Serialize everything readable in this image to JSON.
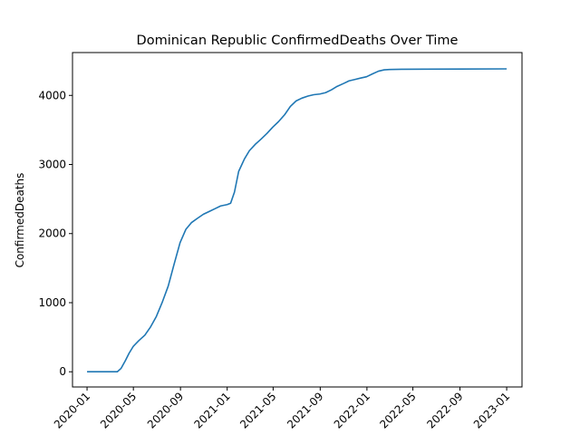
{
  "chart_data": {
    "type": "line",
    "title": "Dominican Republic  ConfirmedDeaths Over Time",
    "xlabel": "",
    "ylabel": "ConfirmedDeaths",
    "x_axis": "date",
    "xlim": [
      "2019-11-24",
      "2023-02-10"
    ],
    "ylim": [
      -220,
      4620
    ],
    "grid": false,
    "legend": "none",
    "line_color": "#1f77b4",
    "x_ticks": [
      "2020-01",
      "2020-05",
      "2020-09",
      "2021-01",
      "2021-05",
      "2021-09",
      "2022-01",
      "2022-05",
      "2022-09",
      "2023-01"
    ],
    "y_ticks": [
      0,
      1000,
      2000,
      3000,
      4000
    ],
    "series": [
      {
        "points": [
          [
            "2020-01-01",
            0
          ],
          [
            "2020-02-15",
            0
          ],
          [
            "2020-03-20",
            0
          ],
          [
            "2020-03-30",
            50
          ],
          [
            "2020-04-10",
            160
          ],
          [
            "2020-04-20",
            270
          ],
          [
            "2020-05-01",
            370
          ],
          [
            "2020-05-15",
            450
          ],
          [
            "2020-05-31",
            530
          ],
          [
            "2020-06-15",
            650
          ],
          [
            "2020-06-30",
            800
          ],
          [
            "2020-07-15",
            1000
          ],
          [
            "2020-07-31",
            1240
          ],
          [
            "2020-08-15",
            1550
          ],
          [
            "2020-08-31",
            1870
          ],
          [
            "2020-09-15",
            2060
          ],
          [
            "2020-09-30",
            2160
          ],
          [
            "2020-10-15",
            2220
          ],
          [
            "2020-10-31",
            2280
          ],
          [
            "2020-11-15",
            2320
          ],
          [
            "2020-11-30",
            2360
          ],
          [
            "2020-12-15",
            2400
          ],
          [
            "2021-01-01",
            2420
          ],
          [
            "2021-01-10",
            2440
          ],
          [
            "2021-01-20",
            2600
          ],
          [
            "2021-01-31",
            2900
          ],
          [
            "2021-02-15",
            3080
          ],
          [
            "2021-02-28",
            3200
          ],
          [
            "2021-03-15",
            3290
          ],
          [
            "2021-03-31",
            3370
          ],
          [
            "2021-04-15",
            3450
          ],
          [
            "2021-04-30",
            3540
          ],
          [
            "2021-05-15",
            3620
          ],
          [
            "2021-05-31",
            3720
          ],
          [
            "2021-06-15",
            3840
          ],
          [
            "2021-06-30",
            3920
          ],
          [
            "2021-07-15",
            3960
          ],
          [
            "2021-07-31",
            3990
          ],
          [
            "2021-08-15",
            4010
          ],
          [
            "2021-08-31",
            4020
          ],
          [
            "2021-09-15",
            4040
          ],
          [
            "2021-09-30",
            4080
          ],
          [
            "2021-10-15",
            4130
          ],
          [
            "2021-10-31",
            4170
          ],
          [
            "2021-11-15",
            4210
          ],
          [
            "2021-11-30",
            4230
          ],
          [
            "2021-12-15",
            4250
          ],
          [
            "2021-12-31",
            4270
          ],
          [
            "2022-01-15",
            4310
          ],
          [
            "2022-01-31",
            4350
          ],
          [
            "2022-02-15",
            4370
          ],
          [
            "2022-03-01",
            4375
          ],
          [
            "2022-04-01",
            4378
          ],
          [
            "2022-06-01",
            4380
          ],
          [
            "2022-09-01",
            4382
          ],
          [
            "2023-01-01",
            4384
          ]
        ]
      }
    ]
  }
}
